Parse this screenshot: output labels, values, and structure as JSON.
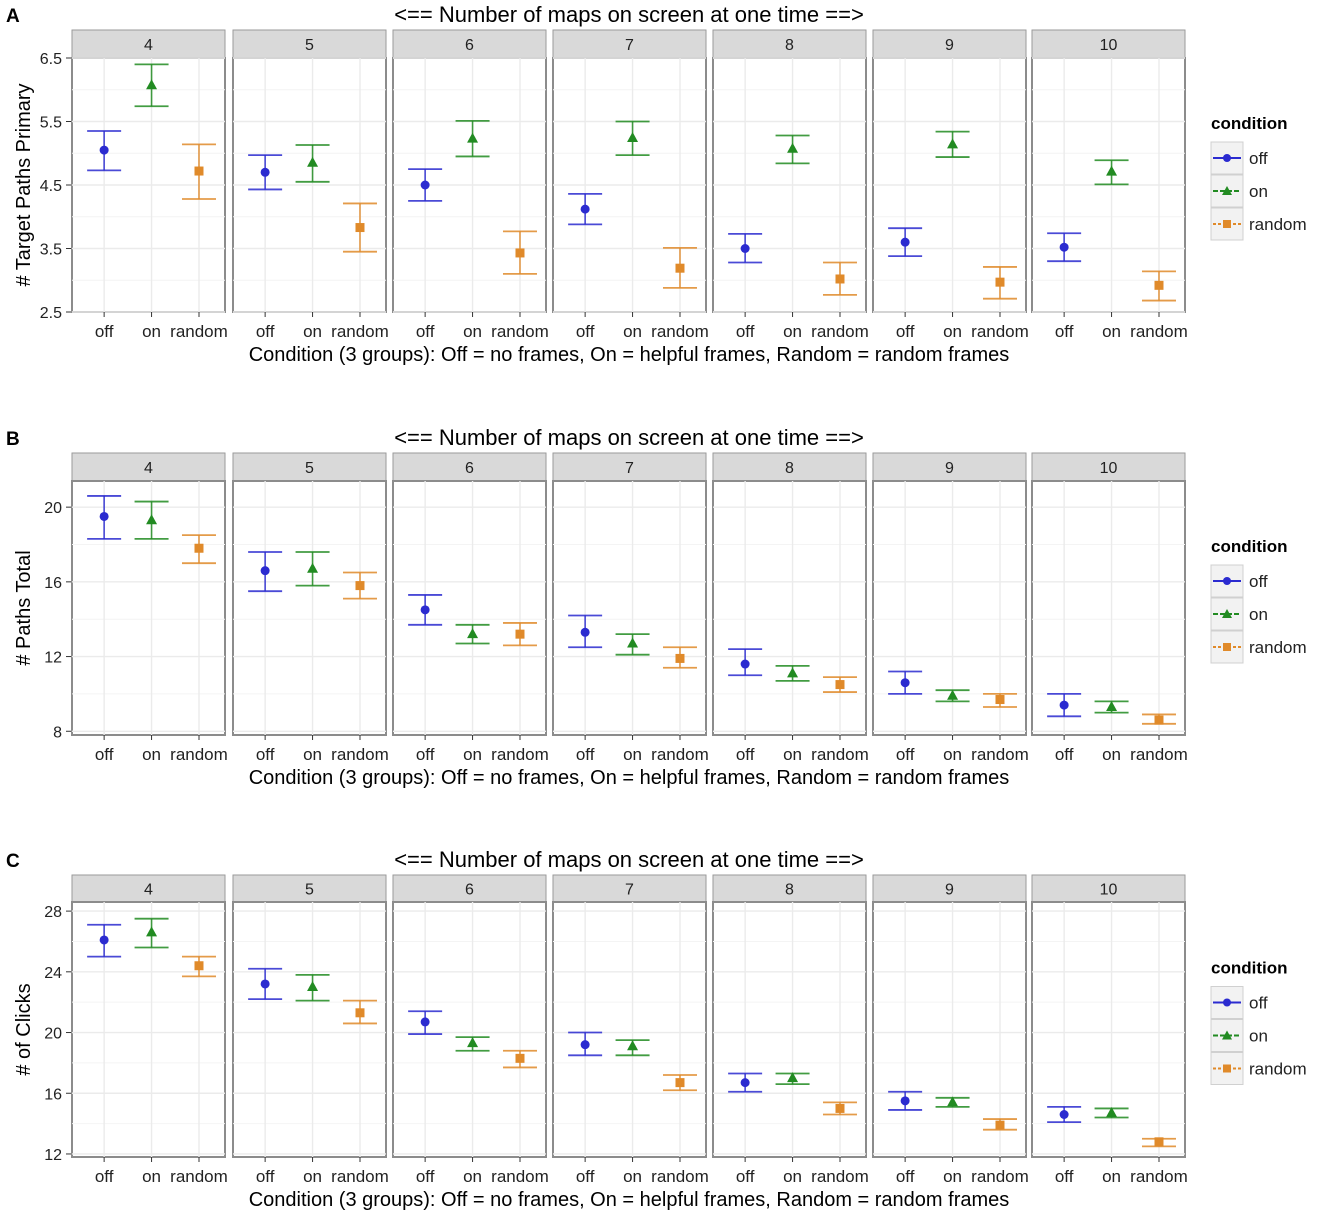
{
  "figure": {
    "panel_letters": [
      "A",
      "B",
      "C"
    ],
    "legend_title": "condition",
    "conditions": [
      "off",
      "on",
      "random"
    ],
    "colors": {
      "off": "#2b2bd0",
      "on": "#228b22",
      "random": "#e08a2a"
    },
    "facet_strip_color": "#d9d9d9"
  },
  "chart_data": [
    {
      "type": "scatter",
      "panel": "A",
      "title": "<== Number of maps on screen at one time ==>",
      "xlabel": "Condition (3 groups): Off = no frames, On = helpful frames, Random = random frames",
      "ylabel": "# Target Paths Primary",
      "facets": [
        "4",
        "5",
        "6",
        "7",
        "8",
        "9",
        "10"
      ],
      "categories": [
        "off",
        "on",
        "random"
      ],
      "ylim": [
        2.5,
        6.5
      ],
      "yticks": [
        2.5,
        3.5,
        4.5,
        5.5,
        6.5
      ],
      "ytick_labels": [
        "2.5",
        "3.5",
        "4.5",
        "5.5",
        "6.5"
      ],
      "series": [
        {
          "name": "off",
          "values": [
            5.05,
            4.7,
            4.5,
            4.12,
            3.5,
            3.6,
            3.52
          ],
          "lower": [
            4.73,
            4.43,
            4.25,
            3.88,
            3.28,
            3.38,
            3.3
          ],
          "upper": [
            5.35,
            4.97,
            4.75,
            4.36,
            3.73,
            3.82,
            3.74
          ]
        },
        {
          "name": "on",
          "values": [
            6.07,
            4.85,
            5.23,
            5.24,
            5.07,
            5.14,
            4.71
          ],
          "lower": [
            5.74,
            4.55,
            4.95,
            4.97,
            4.84,
            4.94,
            4.51
          ],
          "upper": [
            6.4,
            5.13,
            5.51,
            5.5,
            5.28,
            5.34,
            4.89
          ]
        },
        {
          "name": "random",
          "values": [
            4.72,
            3.83,
            3.43,
            3.19,
            3.02,
            2.97,
            2.92
          ],
          "lower": [
            4.28,
            3.45,
            3.1,
            2.88,
            2.77,
            2.71,
            2.68
          ],
          "upper": [
            5.14,
            4.21,
            3.77,
            3.51,
            3.28,
            3.21,
            3.14
          ]
        }
      ]
    },
    {
      "type": "scatter",
      "panel": "B",
      "title": "<== Number of maps on screen at one time ==>",
      "xlabel": "Condition (3 groups): Off = no frames, On = helpful frames, Random = random frames",
      "ylabel": "# Paths Total",
      "facets": [
        "4",
        "5",
        "6",
        "7",
        "8",
        "9",
        "10"
      ],
      "categories": [
        "off",
        "on",
        "random"
      ],
      "ylim": [
        7.8,
        21.4
      ],
      "yticks": [
        8,
        12,
        16,
        20
      ],
      "ytick_labels": [
        "8",
        "12",
        "16",
        "20"
      ],
      "series": [
        {
          "name": "off",
          "values": [
            19.5,
            16.6,
            14.5,
            13.3,
            11.6,
            10.6,
            9.4
          ],
          "lower": [
            18.3,
            15.5,
            13.7,
            12.5,
            11.0,
            10.0,
            8.8
          ],
          "upper": [
            20.6,
            17.6,
            15.3,
            14.2,
            12.4,
            11.2,
            10.0
          ]
        },
        {
          "name": "on",
          "values": [
            19.3,
            16.7,
            13.2,
            12.7,
            11.1,
            9.9,
            9.3
          ],
          "lower": [
            18.3,
            15.8,
            12.7,
            12.1,
            10.7,
            9.6,
            9.0
          ],
          "upper": [
            20.3,
            17.6,
            13.7,
            13.2,
            11.5,
            10.2,
            9.6
          ]
        },
        {
          "name": "random",
          "values": [
            17.8,
            15.8,
            13.2,
            11.9,
            10.5,
            9.7,
            8.6
          ],
          "lower": [
            17.0,
            15.1,
            12.6,
            11.4,
            10.1,
            9.3,
            8.4
          ],
          "upper": [
            18.5,
            16.5,
            13.8,
            12.5,
            10.9,
            10.0,
            8.9
          ]
        }
      ]
    },
    {
      "type": "scatter",
      "panel": "C",
      "title": "<== Number of maps on screen at one time ==>",
      "xlabel": "Condition (3 groups): Off = no frames, On = helpful frames, Random = random frames",
      "ylabel": "# of Clicks",
      "facets": [
        "4",
        "5",
        "6",
        "7",
        "8",
        "9",
        "10"
      ],
      "categories": [
        "off",
        "on",
        "random"
      ],
      "ylim": [
        11.8,
        28.6
      ],
      "yticks": [
        12,
        16,
        20,
        24,
        28
      ],
      "ytick_labels": [
        "12",
        "16",
        "20",
        "24",
        "28"
      ],
      "series": [
        {
          "name": "off",
          "values": [
            26.1,
            23.2,
            20.7,
            19.2,
            16.7,
            15.5,
            14.6
          ],
          "lower": [
            25.0,
            22.2,
            19.9,
            18.5,
            16.1,
            14.9,
            14.1
          ],
          "upper": [
            27.1,
            24.2,
            21.4,
            20.0,
            17.3,
            16.1,
            15.1
          ]
        },
        {
          "name": "on",
          "values": [
            26.6,
            23.0,
            19.3,
            19.1,
            17.0,
            15.4,
            14.7
          ],
          "lower": [
            25.6,
            22.1,
            18.8,
            18.5,
            16.6,
            15.1,
            14.4
          ],
          "upper": [
            27.5,
            23.8,
            19.7,
            19.5,
            17.3,
            15.7,
            15.0
          ]
        },
        {
          "name": "random",
          "values": [
            24.4,
            21.3,
            18.3,
            16.7,
            15.0,
            13.9,
            12.8
          ],
          "lower": [
            23.7,
            20.6,
            17.7,
            16.2,
            14.6,
            13.6,
            12.5
          ],
          "upper": [
            25.0,
            22.1,
            18.8,
            17.2,
            15.4,
            14.3,
            13.0
          ]
        }
      ]
    }
  ]
}
